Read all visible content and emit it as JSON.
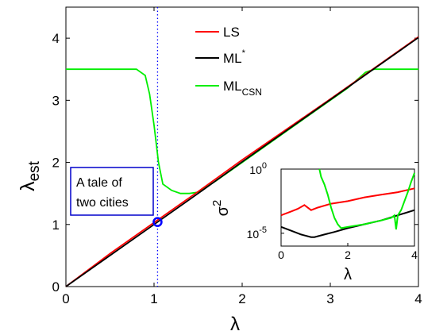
{
  "chart_data": [
    {
      "type": "line",
      "xlabel": "λ",
      "ylabel_main": "λ",
      "ylabel_sub": "est",
      "xlim": [
        0,
        4
      ],
      "ylim": [
        0,
        4.5
      ],
      "xticks": [
        0,
        1,
        2,
        3,
        4
      ],
      "yticks": [
        0,
        1,
        2,
        3,
        4
      ],
      "grid": false,
      "legend_position": "top-right",
      "colors": {
        "LS": "#ff0000",
        "ML*": "#000000",
        "ML_CSN": "#00ee00",
        "marker": "#0000ff",
        "vline": "#0000ff"
      },
      "legend": [
        {
          "name": "LS",
          "sup": "",
          "sub": "",
          "color": "#ff0000"
        },
        {
          "name": "ML",
          "sup": "*",
          "sub": "",
          "color": "#000000"
        },
        {
          "name": "ML",
          "sup": "",
          "sub": "CSN",
          "color": "#00ee00"
        }
      ],
      "series": [
        {
          "name": "LS",
          "x": [
            0,
            0.5,
            1,
            1.5,
            2,
            2.5,
            3,
            3.5,
            4
          ],
          "values": [
            0,
            0.53,
            1.03,
            1.53,
            2.04,
            2.53,
            3.02,
            3.52,
            4.02
          ]
        },
        {
          "name": "ML*",
          "x": [
            0,
            0.5,
            1,
            1.5,
            2,
            2.5,
            3,
            3.5,
            4
          ],
          "values": [
            0,
            0.5,
            1,
            1.5,
            2.01,
            2.51,
            3.01,
            3.51,
            4.01
          ]
        },
        {
          "name": "ML_CSN",
          "x": [
            0,
            0.6,
            0.8,
            0.9,
            0.95,
            1.0,
            1.05,
            1.1,
            1.2,
            1.3,
            1.4,
            1.5,
            1.7,
            2.0,
            2.5,
            3.0,
            3.2,
            3.4,
            3.5,
            4.0
          ],
          "values": [
            3.5,
            3.5,
            3.5,
            3.4,
            3.1,
            2.6,
            2.0,
            1.65,
            1.55,
            1.5,
            1.5,
            1.52,
            1.7,
            2.0,
            2.5,
            3.0,
            3.2,
            3.45,
            3.5,
            3.5
          ]
        }
      ],
      "vline_x": 1.04,
      "marker": {
        "x": 1.04,
        "y": 1.04
      },
      "annotation": [
        "A tale of",
        "two cities"
      ]
    },
    {
      "type": "line",
      "inset": true,
      "xlabel": "λ",
      "ylabel_main": "σ",
      "ylabel_sup": "2",
      "xlim": [
        0,
        4
      ],
      "ylog": true,
      "ylim_log10": [
        -6,
        0
      ],
      "xticks": [
        0,
        2,
        4
      ],
      "yticks_labels": [
        {
          "base": "10",
          "exp": "0",
          "log10": 0
        },
        {
          "base": "10",
          "exp": "-5",
          "log10": -5
        }
      ],
      "series": [
        {
          "name": "LS",
          "color": "#ff0000",
          "x": [
            0,
            0.3,
            0.5,
            0.7,
            0.9,
            1.1,
            1.5,
            2.0,
            2.5,
            3.0,
            3.5,
            4.0
          ],
          "log10_values": [
            -3.6,
            -3.3,
            -3.1,
            -2.8,
            -3.2,
            -3.0,
            -2.7,
            -2.5,
            -2.2,
            -2.0,
            -1.8,
            -1.5
          ]
        },
        {
          "name": "ML*",
          "color": "#000000",
          "x": [
            0,
            0.3,
            0.6,
            0.9,
            1.0,
            1.3,
            1.6,
            2.0,
            2.5,
            3.0,
            3.5,
            4.0
          ],
          "log10_values": [
            -4.5,
            -4.8,
            -5.1,
            -5.3,
            -5.3,
            -5.1,
            -4.9,
            -4.6,
            -4.3,
            -4.0,
            -3.6,
            -3.2
          ]
        },
        {
          "name": "ML_CSN",
          "color": "#00ee00",
          "x": [
            1.15,
            1.2,
            1.3,
            1.4,
            1.5,
            1.6,
            1.7,
            1.8,
            2.0,
            2.5,
            3.0,
            3.3,
            3.4,
            3.45,
            3.5,
            3.6,
            3.7,
            3.8,
            3.9,
            4.0
          ],
          "log10_values": [
            0,
            -0.6,
            -1.2,
            -2.0,
            -3.0,
            -3.8,
            -4.3,
            -4.6,
            -4.5,
            -4.3,
            -4.0,
            -3.8,
            -3.6,
            -4.7,
            -3.6,
            -3.2,
            -2.5,
            -1.8,
            -1.0,
            -0.3
          ]
        }
      ]
    }
  ]
}
